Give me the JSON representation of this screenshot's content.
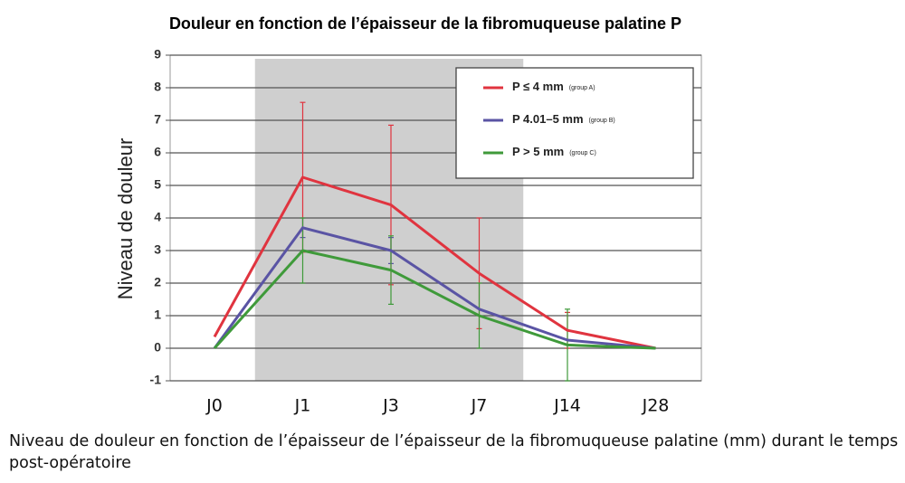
{
  "chart_data": {
    "type": "line",
    "title": "Douleur en fonction de l’épaisseur de la fibromuqueuse palatine P",
    "ylabel": "Niveau de douleur",
    "caption": "Niveau de douleur en fonction de l’épaisseur de l’épaisseur de la fibromuqueuse palatine (mm) durant le temps post-opératoire",
    "categories": [
      "J0",
      "J1",
      "J3",
      "J7",
      "J14",
      "J28"
    ],
    "series": [
      {
        "name": "P ≤ 4 mm",
        "group": "(group A)",
        "color": "#e0343f",
        "values": [
          0.35,
          5.25,
          4.4,
          2.3,
          0.55,
          0
        ],
        "errors": [
          null,
          2.3,
          2.45,
          1.7,
          0.55,
          null
        ]
      },
      {
        "name": "P 4.01–5 mm",
        "group": "(group B)",
        "color": "#5a54a4",
        "values": [
          0,
          3.7,
          3.0,
          1.2,
          0.25,
          0
        ],
        "errors": [
          null,
          0.3,
          0.4,
          null,
          null,
          null
        ]
      },
      {
        "name": "P > 5 mm",
        "group": "(group C)",
        "color": "#3f9a3a",
        "values": [
          0,
          3.0,
          2.4,
          1.0,
          0.1,
          0
        ],
        "errors": [
          null,
          1.0,
          1.05,
          1.0,
          1.1,
          null
        ]
      }
    ],
    "ylim": [
      -1,
      9
    ],
    "yticks": [
      -1,
      0,
      1,
      2,
      3,
      4,
      5,
      6,
      7,
      8,
      9
    ],
    "grid": true,
    "legend": "upper right"
  }
}
